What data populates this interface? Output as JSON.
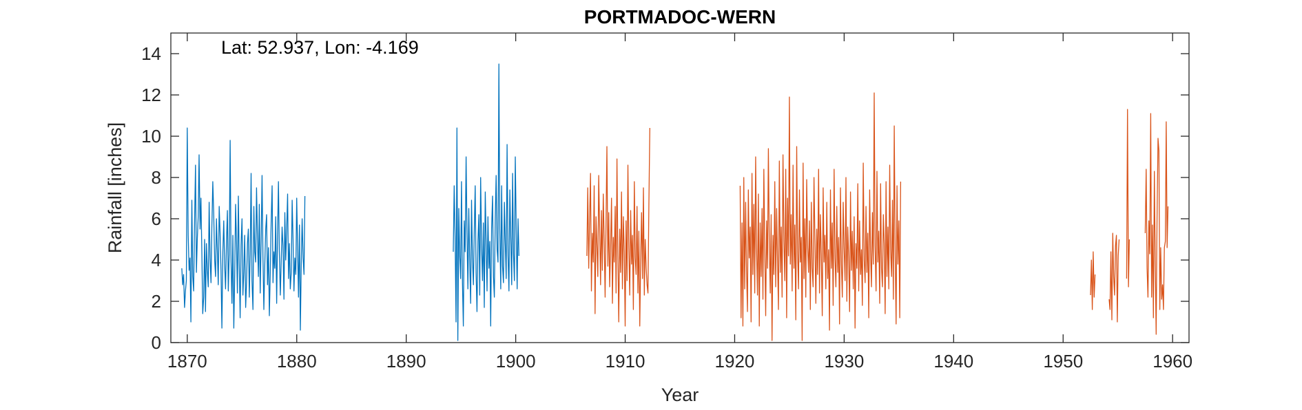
{
  "chart_data": {
    "type": "line",
    "title": "PORTMADOC-WERN",
    "xlabel": "Year",
    "ylabel": "Rainfall [inches]",
    "annotation": "Lat: 52.937, Lon: -4.169",
    "xlim": [
      1868.5,
      1961.5
    ],
    "ylim": [
      0,
      15
    ],
    "xticks": [
      1870,
      1880,
      1890,
      1900,
      1910,
      1920,
      1930,
      1940,
      1950,
      1960
    ],
    "yticks": [
      0,
      2,
      4,
      6,
      8,
      10,
      12,
      14
    ],
    "grid": false,
    "series": [
      {
        "color": "#0072BD",
        "x_start": 1869.5,
        "x_step": 0.0833,
        "segments": [
          {
            "start": 1869.5,
            "values": [
              3.6,
              2.8,
              3.3,
              1.7,
              2.5,
              3.0,
              10.4,
              5.2,
              3.5,
              4.1,
              1.0,
              6.9,
              3.2,
              2.5,
              5.8,
              8.6,
              3.4,
              5.0,
              6.1,
              9.1,
              5.5,
              7.0,
              4.4,
              1.4,
              2.2,
              5.0,
              1.5,
              4.8,
              3.5,
              2.7,
              6.8,
              4.1,
              2.9,
              5.7,
              7.8,
              6.3,
              4.0,
              3.2,
              6.0,
              4.5,
              2.8,
              6.6,
              5.3,
              3.5,
              0.7,
              4.4,
              5.9,
              3.8,
              2.6,
              4.9,
              6.4,
              2.5,
              4.3,
              9.8,
              3.9,
              1.9,
              5.2,
              0.7,
              3.3,
              6.7,
              4.9,
              2.4,
              7.1,
              3.8,
              1.2,
              4.7,
              6.0,
              2.3,
              3.4,
              5.2,
              1.7,
              2.9,
              4.8,
              5.5,
              2.2,
              4.3,
              8.2,
              3.0,
              1.6,
              6.6,
              4.4,
              3.9,
              7.5,
              5.0,
              3.2,
              6.7,
              2.4,
              4.9,
              8.1,
              4.2,
              1.6,
              3.8,
              5.5,
              6.2,
              2.8,
              4.6,
              1.3,
              3.3,
              5.8,
              7.6,
              2.9,
              4.4,
              3.6,
              6.1,
              1.9,
              5.2,
              7.8,
              4.4,
              2.3,
              3.9,
              5.6,
              4.7,
              2.1,
              6.3,
              4.0,
              5.4,
              7.2,
              3.1,
              4.8,
              2.6,
              3.4,
              6.9,
              5.0,
              2.5,
              4.1,
              3.3,
              7.0,
              4.6,
              2.2,
              5.7,
              0.6,
              3.8,
              6.0,
              4.1,
              3.3,
              7.1
            ]
          },
          {
            "start": 1894.3,
            "values": [
              4.4,
              7.6,
              5.0,
              1.0,
              10.4,
              0.1,
              6.5,
              4.2,
              3.1,
              7.8,
              2.9,
              0.8,
              5.9,
              4.4,
              9.0,
              5.3,
              2.6,
              6.5,
              3.8,
              1.9,
              6.9,
              4.1,
              2.8,
              5.5,
              7.6,
              3.4,
              1.5,
              4.9,
              6.2,
              2.3,
              8.0,
              4.6,
              3.0,
              5.8,
              1.7,
              7.3,
              4.8,
              2.5,
              6.1,
              3.6,
              4.9,
              0.8,
              5.5,
              7.1,
              3.2,
              2.2,
              6.0,
              8.1,
              4.5,
              3.9,
              13.5,
              5.5,
              2.6,
              7.6,
              3.7,
              2.9,
              6.8,
              4.8,
              3.1,
              9.6,
              4.2,
              2.5,
              7.4,
              5.1,
              2.8,
              8.2,
              4.3,
              3.0,
              9.0,
              5.4,
              2.6,
              6.0,
              4.2
            ]
          }
        ]
      },
      {
        "color": "#D95319",
        "x_start": 1906.5,
        "x_step": 0.0833,
        "segments": [
          {
            "start": 1906.5,
            "values": [
              4.2,
              7.5,
              3.6,
              6.0,
              8.2,
              2.5,
              5.3,
              3.9,
              7.6,
              1.4,
              6.1,
              4.7,
              3.2,
              8.1,
              5.6,
              2.8,
              6.4,
              3.5,
              7.2,
              4.9,
              2.2,
              5.8,
              9.5,
              3.7,
              6.3,
              2.7,
              4.6,
              7.0,
              1.9,
              5.1,
              3.9,
              6.6,
              2.4,
              8.9,
              4.2,
              1.0,
              5.5,
              3.4,
              7.3,
              2.6,
              6.1,
              4.4,
              0.8,
              5.9,
              3.0,
              8.6,
              4.6,
              2.3,
              6.4,
              3.8,
              5.2,
              1.6,
              7.8,
              4.1,
              3.3,
              6.6,
              2.4,
              5.4,
              0.8,
              4.0,
              6.3,
              3.1,
              7.5,
              2.3,
              5.0,
              3.6,
              2.8,
              2.4,
              6.6,
              10.4
            ]
          },
          {
            "start": 1920.5,
            "values": [
              7.6,
              1.2,
              5.8,
              0.8,
              8.0,
              2.6,
              6.8,
              3.5,
              1.5,
              7.4,
              4.1,
              5.6,
              1.0,
              8.2,
              3.3,
              6.7,
              2.4,
              9.0,
              4.6,
              2.3,
              7.2,
              0.8,
              5.8,
              3.2,
              6.5,
              2.1,
              8.4,
              4.4,
              1.3,
              5.9,
              3.6,
              9.4,
              4.6,
              2.4,
              6.2,
              0.1,
              5.2,
              3.3,
              7.8,
              2.7,
              6.5,
              4.0,
              1.6,
              8.8,
              3.4,
              5.6,
              2.2,
              9.1,
              4.9,
              3.0,
              8.4,
              1.2,
              7.0,
              4.2,
              11.9,
              3.8,
              6.2,
              2.5,
              8.6,
              3.6,
              5.7,
              1.1,
              9.5,
              4.4,
              2.6,
              7.4,
              3.9,
              5.1,
              0.1,
              8.7,
              3.1,
              6.0,
              2.2,
              7.9,
              4.6,
              3.4,
              5.9,
              1.6,
              6.8,
              3.6,
              2.7,
              8.0,
              4.9,
              1.9,
              5.5,
              3.3,
              8.4,
              2.4,
              6.2,
              4.3,
              1.3,
              7.5,
              3.9,
              5.2,
              2.6,
              6.8,
              3.1,
              4.5,
              0.6,
              7.4,
              3.6,
              5.8,
              1.8,
              8.4,
              4.1,
              2.7,
              6.6,
              3.4,
              5.1,
              0.9,
              7.5,
              3.8,
              2.2,
              6.8,
              4.6,
              3.0,
              8.0,
              2.0,
              5.6,
              4.2,
              1.5,
              7.3,
              3.5,
              5.4,
              2.6,
              6.1,
              0.7,
              4.8,
              3.6,
              7.7,
              2.5,
              5.9,
              3.3,
              4.5,
              1.8,
              8.7,
              4.0,
              2.9,
              6.6,
              3.4,
              5.3,
              1.2,
              7.4,
              4.4,
              2.7,
              6.3,
              3.8,
              12.1,
              4.7,
              2.5,
              8.3,
              3.9,
              5.4,
              1.9,
              7.7,
              3.6,
              2.7,
              6.2,
              4.8,
              1.4,
              7.8,
              3.2,
              5.6,
              2.6,
              8.6,
              4.5,
              3.2,
              6.9,
              2.1,
              10.5,
              4.2,
              0.9,
              7.6,
              3.8,
              5.9,
              1.2,
              7.8
            ]
          },
          {
            "start": 1952.5,
            "values": [
              2.3,
              4.0,
              1.6,
              4.4,
              2.2,
              3.3
            ]
          },
          {
            "start": 1954.2,
            "values": [
              2.1,
              1.6,
              4.4,
              1.1,
              5.3,
              3.2,
              2.3,
              4.7,
              5.2,
              1.0,
              4.2,
              5.0
            ]
          },
          {
            "start": 1955.8,
            "values": [
              3.1,
              11.3,
              2.7,
              5.0
            ]
          },
          {
            "start": 1957.5,
            "values": [
              5.3,
              8.4,
              3.6,
              2.2,
              5.9,
              4.3,
              11.1,
              2.2,
              5.7,
              1.2,
              8.3,
              3.8,
              0.4,
              6.1,
              9.9,
              9.3,
              1.6,
              4.6,
              2.1,
              2.8,
              1.6,
              4.6,
              4.9,
              10.7,
              4.6,
              6.6
            ]
          }
        ]
      }
    ]
  }
}
